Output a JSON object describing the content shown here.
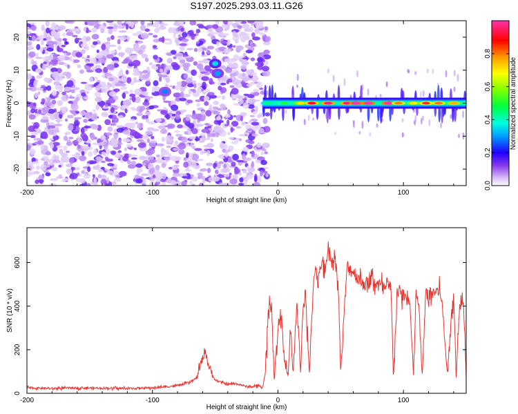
{
  "figure_title": "S197.2025.293.03.11.G26",
  "chart_data": [
    {
      "type": "heatmap",
      "title": "S197.2025.293.03.11.G26",
      "xlabel": "Height of straight line (km)",
      "ylabel": "Frequency (Hz)",
      "xlim": [
        -200,
        150
      ],
      "ylim": [
        -25,
        25
      ],
      "xticks": [
        -200,
        -100,
        0,
        100
      ],
      "xtick_labels": [
        "-200",
        "-100",
        "0",
        "100"
      ],
      "yticks": [
        -20,
        -10,
        0,
        10,
        20
      ],
      "ytick_labels": [
        "-20",
        "-10",
        "0",
        "10",
        "20"
      ],
      "colorbar": {
        "label": "Normalized spectral amplitude",
        "range": [
          0,
          1
        ],
        "ticks": [
          0.0,
          0.2,
          0.4,
          0.6,
          0.8
        ],
        "tick_labels": [
          "0.0",
          "0.2",
          "0.4",
          "0.6",
          "0.8"
        ]
      },
      "regions": [
        {
          "name": "noise",
          "x": [
            -200,
            -12
          ],
          "y": [
            -25,
            25
          ],
          "level": 0.12
        },
        {
          "name": "spot",
          "x": -50,
          "y": 12,
          "level": 0.25
        },
        {
          "name": "spot",
          "x": -48,
          "y": 9,
          "level": 0.2
        },
        {
          "name": "spot",
          "x": -90,
          "y": 3.5,
          "level": 0.18
        },
        {
          "name": "signal-band",
          "x": [
            -12,
            150
          ],
          "y": [
            -1,
            1
          ],
          "level": 0.55
        }
      ],
      "band_peaks": [
        {
          "x": -8,
          "level": 0.45
        },
        {
          "x": 5,
          "level": 0.5
        },
        {
          "x": 18,
          "level": 0.7
        },
        {
          "x": 27,
          "level": 0.9
        },
        {
          "x": 40,
          "level": 0.95
        },
        {
          "x": 55,
          "level": 0.95
        },
        {
          "x": 62,
          "level": 1.0
        },
        {
          "x": 72,
          "level": 1.0
        },
        {
          "x": 88,
          "level": 1.0
        },
        {
          "x": 96,
          "level": 0.8
        },
        {
          "x": 108,
          "level": 0.7
        },
        {
          "x": 118,
          "level": 0.85
        },
        {
          "x": 128,
          "level": 0.8
        },
        {
          "x": 140,
          "level": 0.75
        }
      ]
    },
    {
      "type": "line",
      "xlabel": "Height of straight line (km)",
      "ylabel": "SNR (10 * v/v)",
      "xlim": [
        -200,
        150
      ],
      "ylim": [
        0,
        760
      ],
      "xticks": [
        -200,
        -100,
        0,
        100
      ],
      "xtick_labels": [
        "-200",
        "-100",
        "0",
        "100"
      ],
      "yticks": [
        0,
        200,
        400,
        600
      ],
      "ytick_labels": [
        "0",
        "200",
        "400",
        "600"
      ],
      "series": [
        {
          "name": "SNR",
          "color": "#e8322e",
          "x": [
            -200,
            -180,
            -160,
            -140,
            -120,
            -100,
            -90,
            -80,
            -70,
            -65,
            -60,
            -58,
            -55,
            -50,
            -45,
            -40,
            -35,
            -30,
            -25,
            -20,
            -15,
            -12,
            -10,
            -8,
            -5,
            -3,
            0,
            3,
            5,
            8,
            10,
            12,
            15,
            18,
            20,
            22,
            25,
            28,
            30,
            32,
            35,
            38,
            40,
            42,
            45,
            48,
            50,
            55,
            60,
            65,
            70,
            75,
            80,
            85,
            88,
            90,
            92,
            95,
            100,
            105,
            108,
            110,
            112,
            115,
            118,
            120,
            125,
            130,
            135,
            140,
            142,
            145,
            148,
            150
          ],
          "y": [
            25,
            22,
            25,
            24,
            22,
            25,
            30,
            35,
            50,
            70,
            160,
            200,
            120,
            60,
            50,
            40,
            45,
            40,
            30,
            30,
            35,
            25,
            100,
            350,
            420,
            60,
            300,
            380,
            150,
            70,
            300,
            80,
            420,
            100,
            400,
            450,
            80,
            480,
            600,
            500,
            620,
            550,
            700,
            600,
            630,
            520,
            90,
            580,
            560,
            520,
            500,
            520,
            500,
            480,
            480,
            490,
            80,
            470,
            450,
            420,
            80,
            460,
            420,
            80,
            480,
            440,
            470,
            460,
            90,
            480,
            80,
            420,
            410,
            80
          ]
        }
      ]
    }
  ]
}
